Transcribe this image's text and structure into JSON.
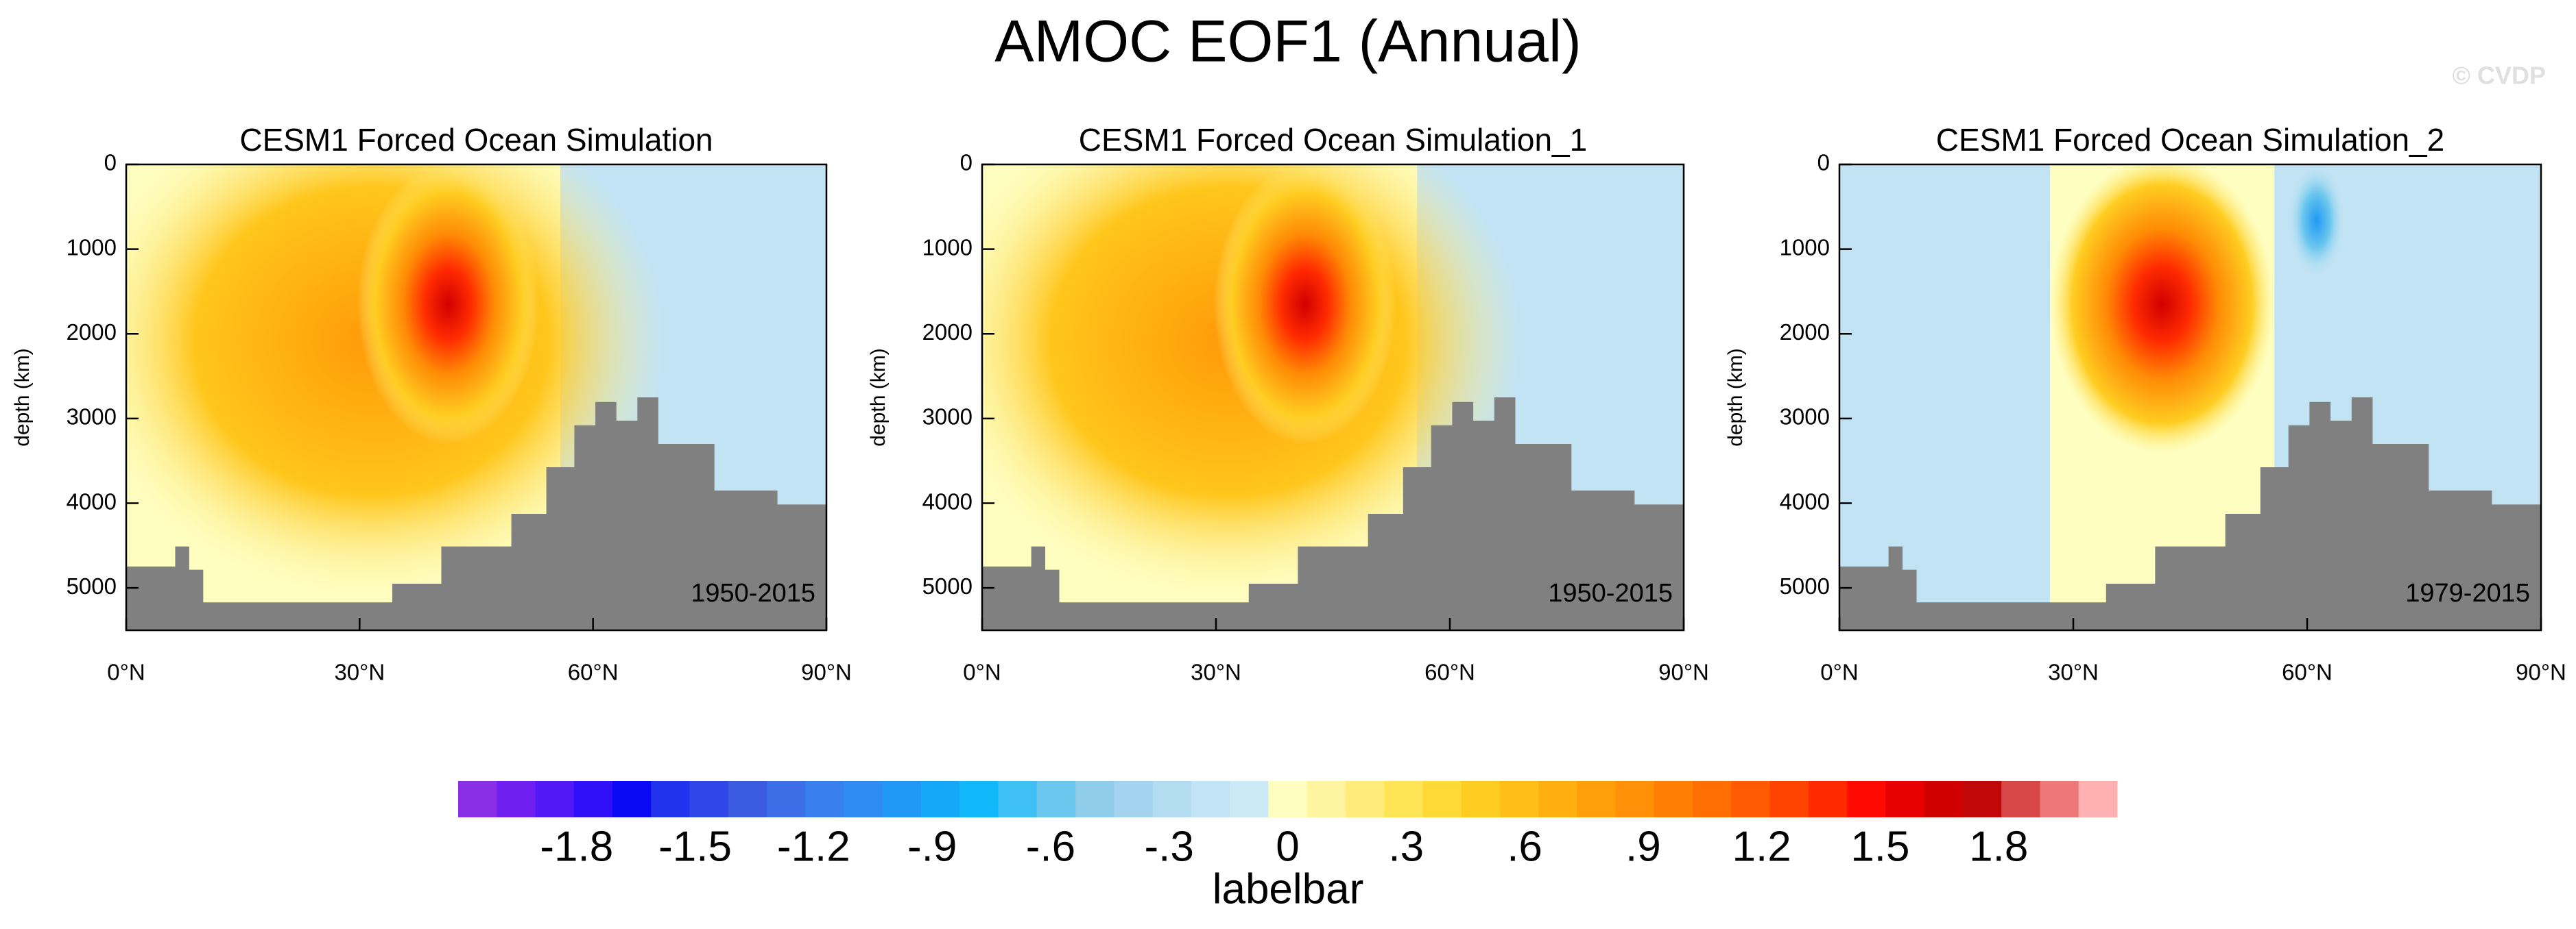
{
  "title": "AMOC EOF1 (Annual)",
  "watermark": "© CVDP",
  "chart_data": [
    {
      "type": "contour",
      "title": "CESM1 Forced Ocean Simulation",
      "annotation": "1950-2015",
      "y_label": "depth (km)",
      "xlim": [
        0,
        90
      ],
      "xticks": [
        {
          "value": 0,
          "label": "0°N"
        },
        {
          "value": 30,
          "label": "30°N"
        },
        {
          "value": 60,
          "label": "60°N"
        },
        {
          "value": 90,
          "label": "90°N"
        }
      ],
      "ylim": [
        0,
        5500
      ],
      "y_reversed": true,
      "yticks": [
        0,
        1000,
        2000,
        3000,
        4000,
        5000
      ]
    },
    {
      "type": "contour",
      "title": "CESM1 Forced Ocean Simulation_1",
      "annotation": "1950-2015",
      "y_label": "depth (km)",
      "xlim": [
        0,
        90
      ],
      "xticks": [
        {
          "value": 0,
          "label": "0°N"
        },
        {
          "value": 30,
          "label": "30°N"
        },
        {
          "value": 60,
          "label": "60°N"
        },
        {
          "value": 90,
          "label": "90°N"
        }
      ],
      "ylim": [
        0,
        5500
      ],
      "y_reversed": true,
      "yticks": [
        0,
        1000,
        2000,
        3000,
        4000,
        5000
      ]
    },
    {
      "type": "contour",
      "title": "CESM1 Forced Ocean Simulation_2",
      "annotation": "1979-2015",
      "y_label": "depth (km)",
      "xlim": [
        0,
        90
      ],
      "xticks": [
        {
          "value": 0,
          "label": "0°N"
        },
        {
          "value": 30,
          "label": "30°N"
        },
        {
          "value": 60,
          "label": "60°N"
        },
        {
          "value": 90,
          "label": "90°N"
        }
      ],
      "ylim": [
        0,
        5500
      ],
      "y_reversed": true,
      "yticks": [
        0,
        1000,
        2000,
        3000,
        4000,
        5000
      ]
    }
  ],
  "labelbar": {
    "title": "labelbar",
    "lim": [
      -2.1,
      2.1
    ],
    "colors": [
      "#8a2fe6",
      "#6f20f0",
      "#5218f5",
      "#2f0ef8",
      "#0a0af5",
      "#2233ee",
      "#2e47e6",
      "#3a5ae0",
      "#3d6ee8",
      "#3a7fee",
      "#2e8cf2",
      "#1f99f5",
      "#15a8f8",
      "#10b8fa",
      "#3fc0f5",
      "#6cc7ee",
      "#8fcdeb",
      "#a3d3ee",
      "#b3dcf1",
      "#c1e3f4",
      "#cbe8f5",
      "#fefec0",
      "#fff4a0",
      "#ffec7a",
      "#ffe455",
      "#ffd935",
      "#ffcd22",
      "#ffbf18",
      "#ffb010",
      "#ffa00a",
      "#ff9008",
      "#ff7f05",
      "#ff6e03",
      "#ff5a02",
      "#ff4300",
      "#ff2a00",
      "#ff0a00",
      "#e80000",
      "#d00000",
      "#c00808",
      "#d84848",
      "#ee7878",
      "#ffb0b0"
    ],
    "ticks": [
      -1.8,
      -1.5,
      -1.2,
      {
        "value": -0.9,
        "label": "-.9"
      },
      {
        "value": -0.6,
        "label": "-.6"
      },
      {
        "value": -0.3,
        "label": "-.3"
      },
      0,
      {
        "value": 0.3,
        "label": ".3"
      },
      {
        "value": 0.6,
        "label": ".6"
      },
      {
        "value": 0.9,
        "label": ".9"
      },
      1.2,
      1.5,
      1.8
    ]
  }
}
